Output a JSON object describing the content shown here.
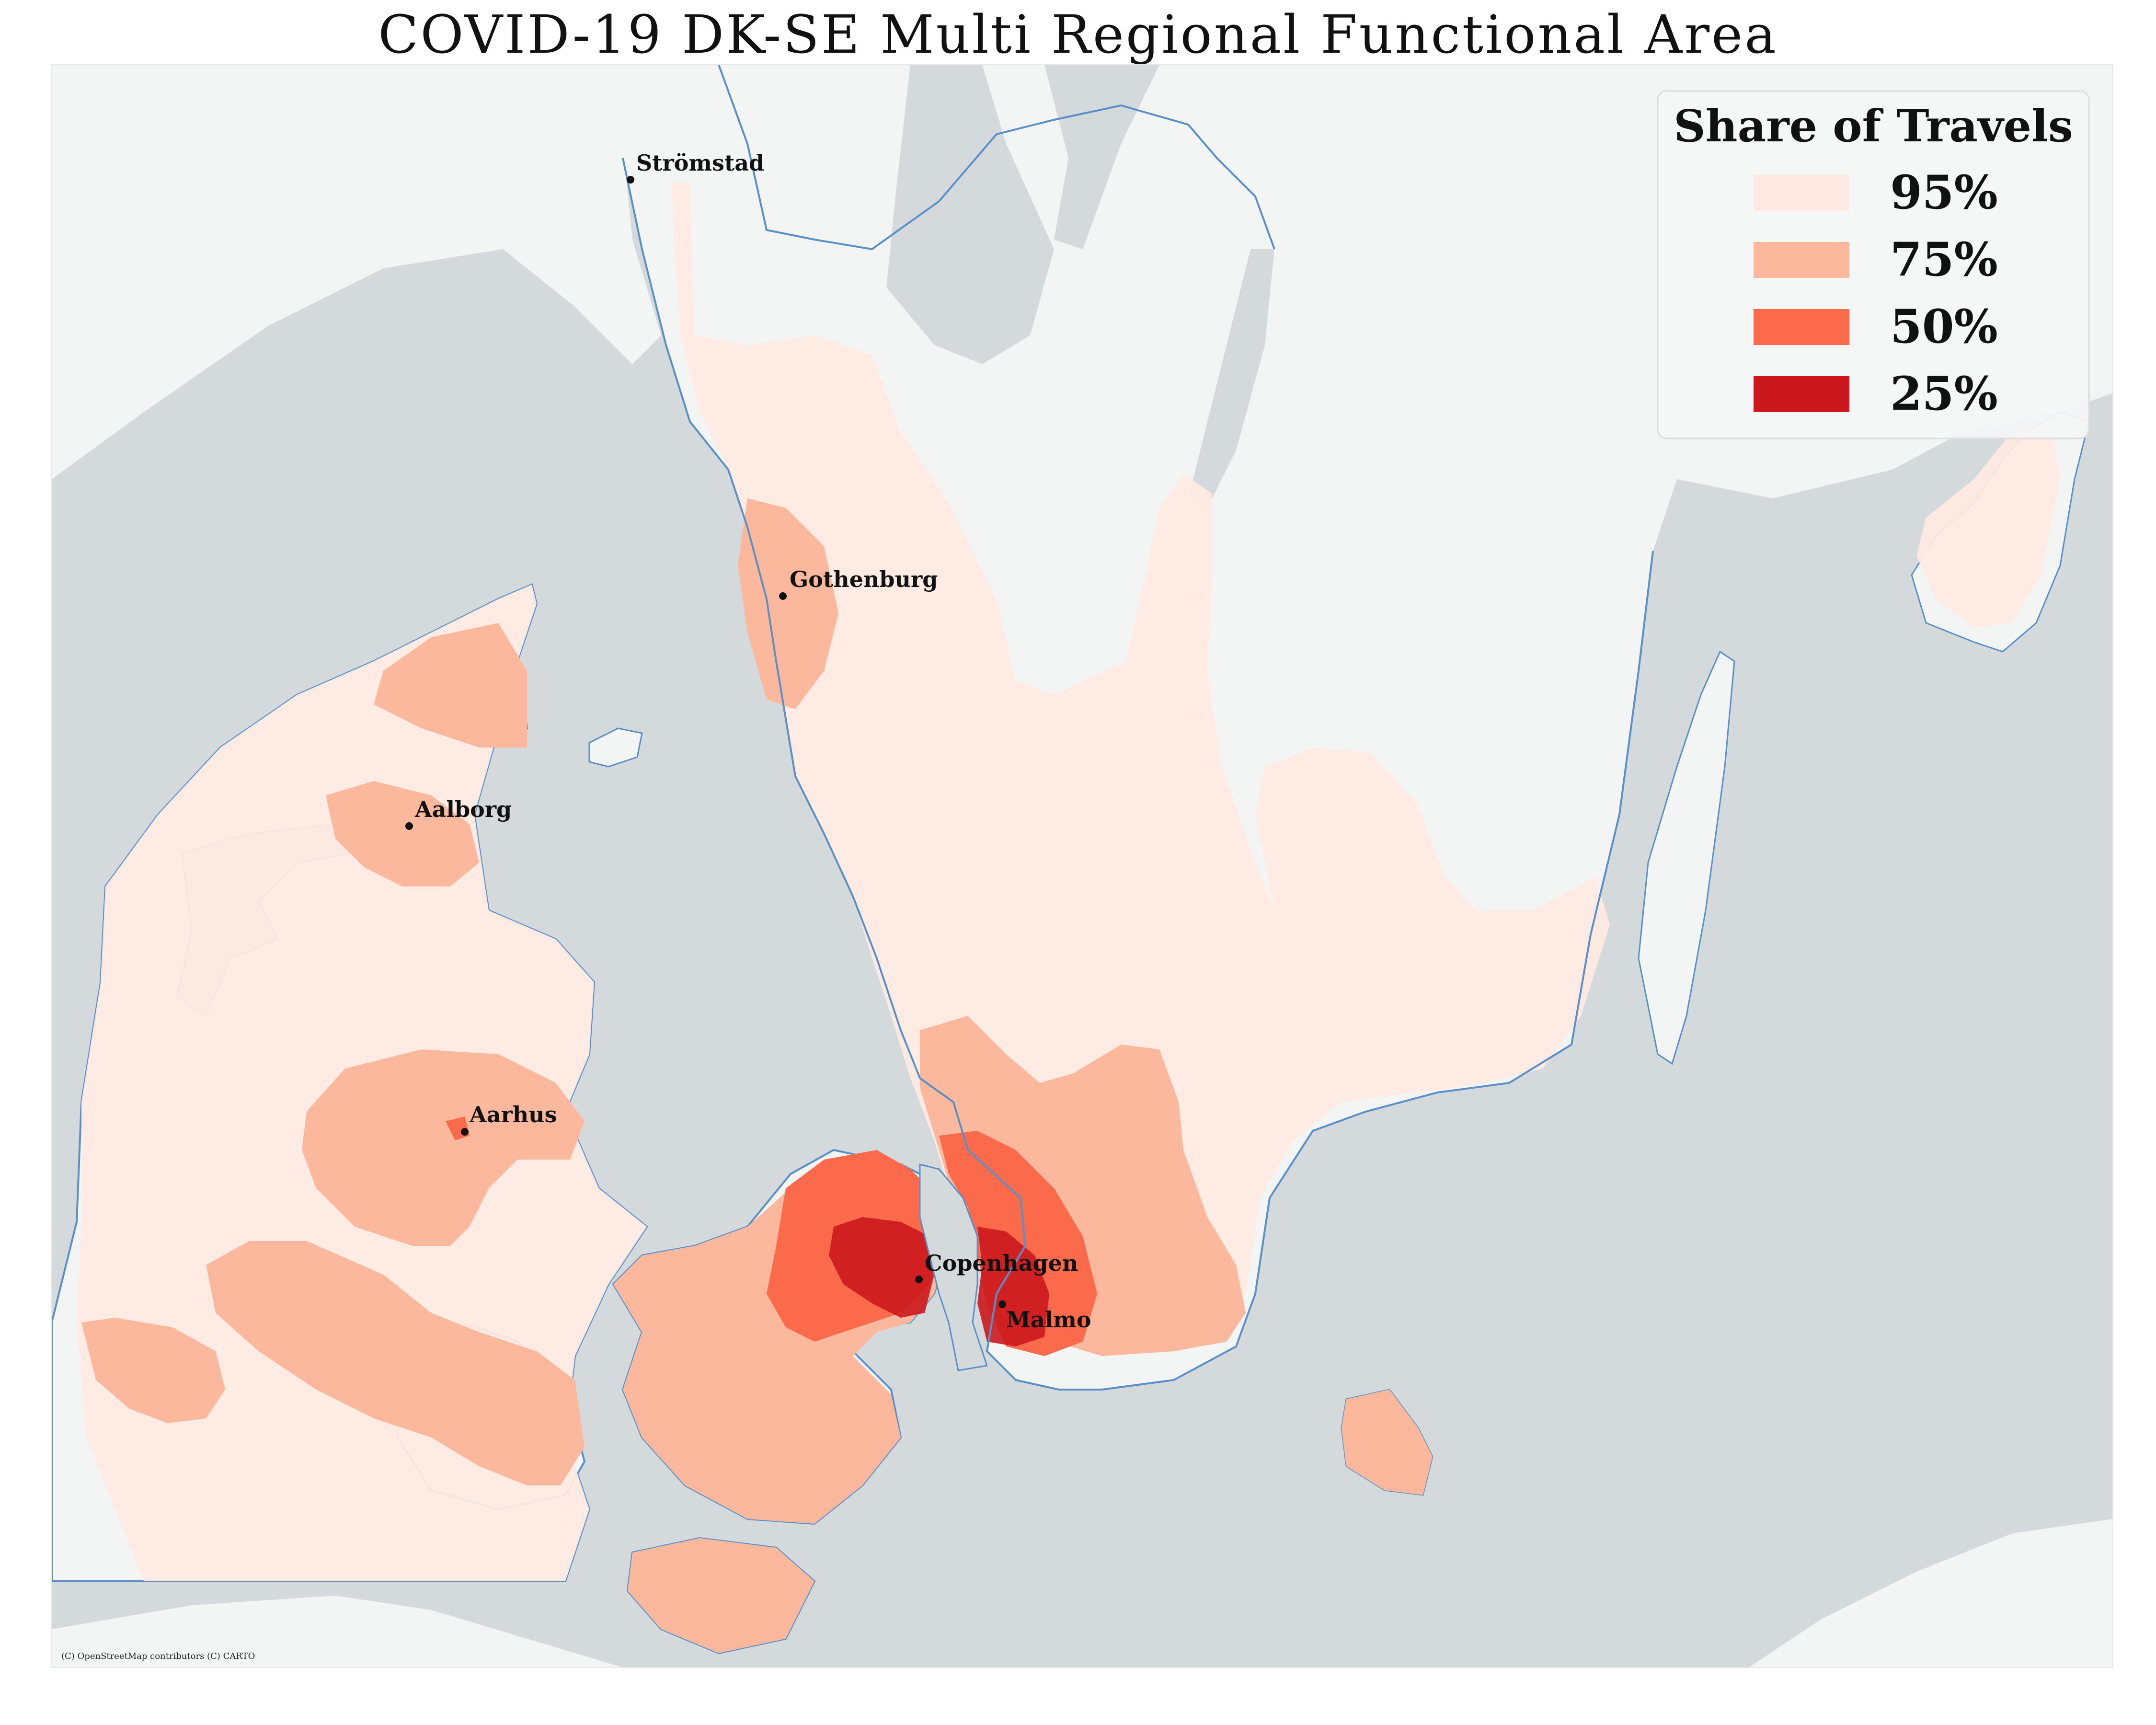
{
  "title": "COVID-19 DK-SE Multi Regional Functional Area",
  "attribution": "(C) OpenStreetMap contributors (C) CARTO",
  "legend": {
    "title": "Share of Travels",
    "items": [
      {
        "label": "95%",
        "color": "#feeae2"
      },
      {
        "label": "75%",
        "color": "#fcb89c"
      },
      {
        "label": "50%",
        "color": "#fb6b4b"
      },
      {
        "label": "25%",
        "color": "#cb181d"
      }
    ]
  },
  "cities": [
    {
      "name": "Strömstad"
    },
    {
      "name": "Gothenburg"
    },
    {
      "name": "Aalborg"
    },
    {
      "name": "Aarhus"
    },
    {
      "name": "Copenhagen"
    },
    {
      "name": "Malmo"
    }
  ],
  "colors": {
    "sea": "#d4d9dc",
    "land": "#f3f4f4",
    "coast": "#5b8fc7",
    "p95": "#feeae2",
    "p75": "#fcb89c",
    "p50": "#fb6b4b",
    "p25": "#cb181d"
  }
}
